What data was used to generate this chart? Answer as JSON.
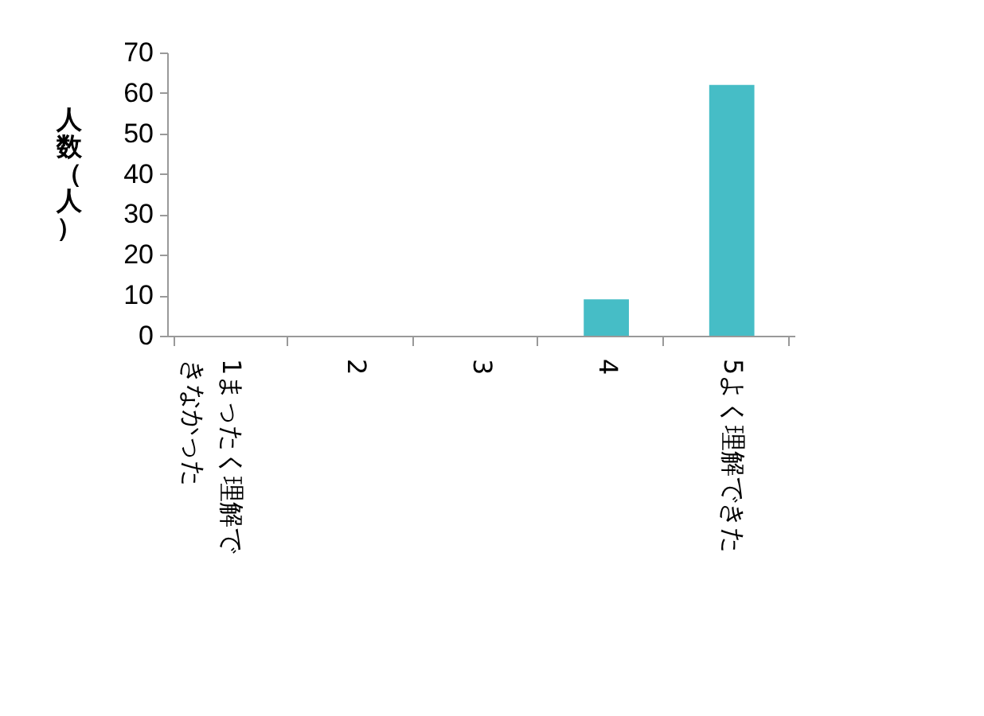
{
  "chart_data": {
    "type": "bar",
    "ylabel": "人数（人）",
    "categories": [
      "1まったく理解できなかった",
      "2",
      "3",
      "4",
      "5よく理解できた"
    ],
    "values": [
      0,
      0,
      0,
      9,
      62
    ],
    "color": "#46bdc6",
    "ylim": [
      0,
      70
    ],
    "yticks": [
      0,
      10,
      20,
      30,
      40,
      50,
      60,
      70
    ],
    "grid": false
  }
}
